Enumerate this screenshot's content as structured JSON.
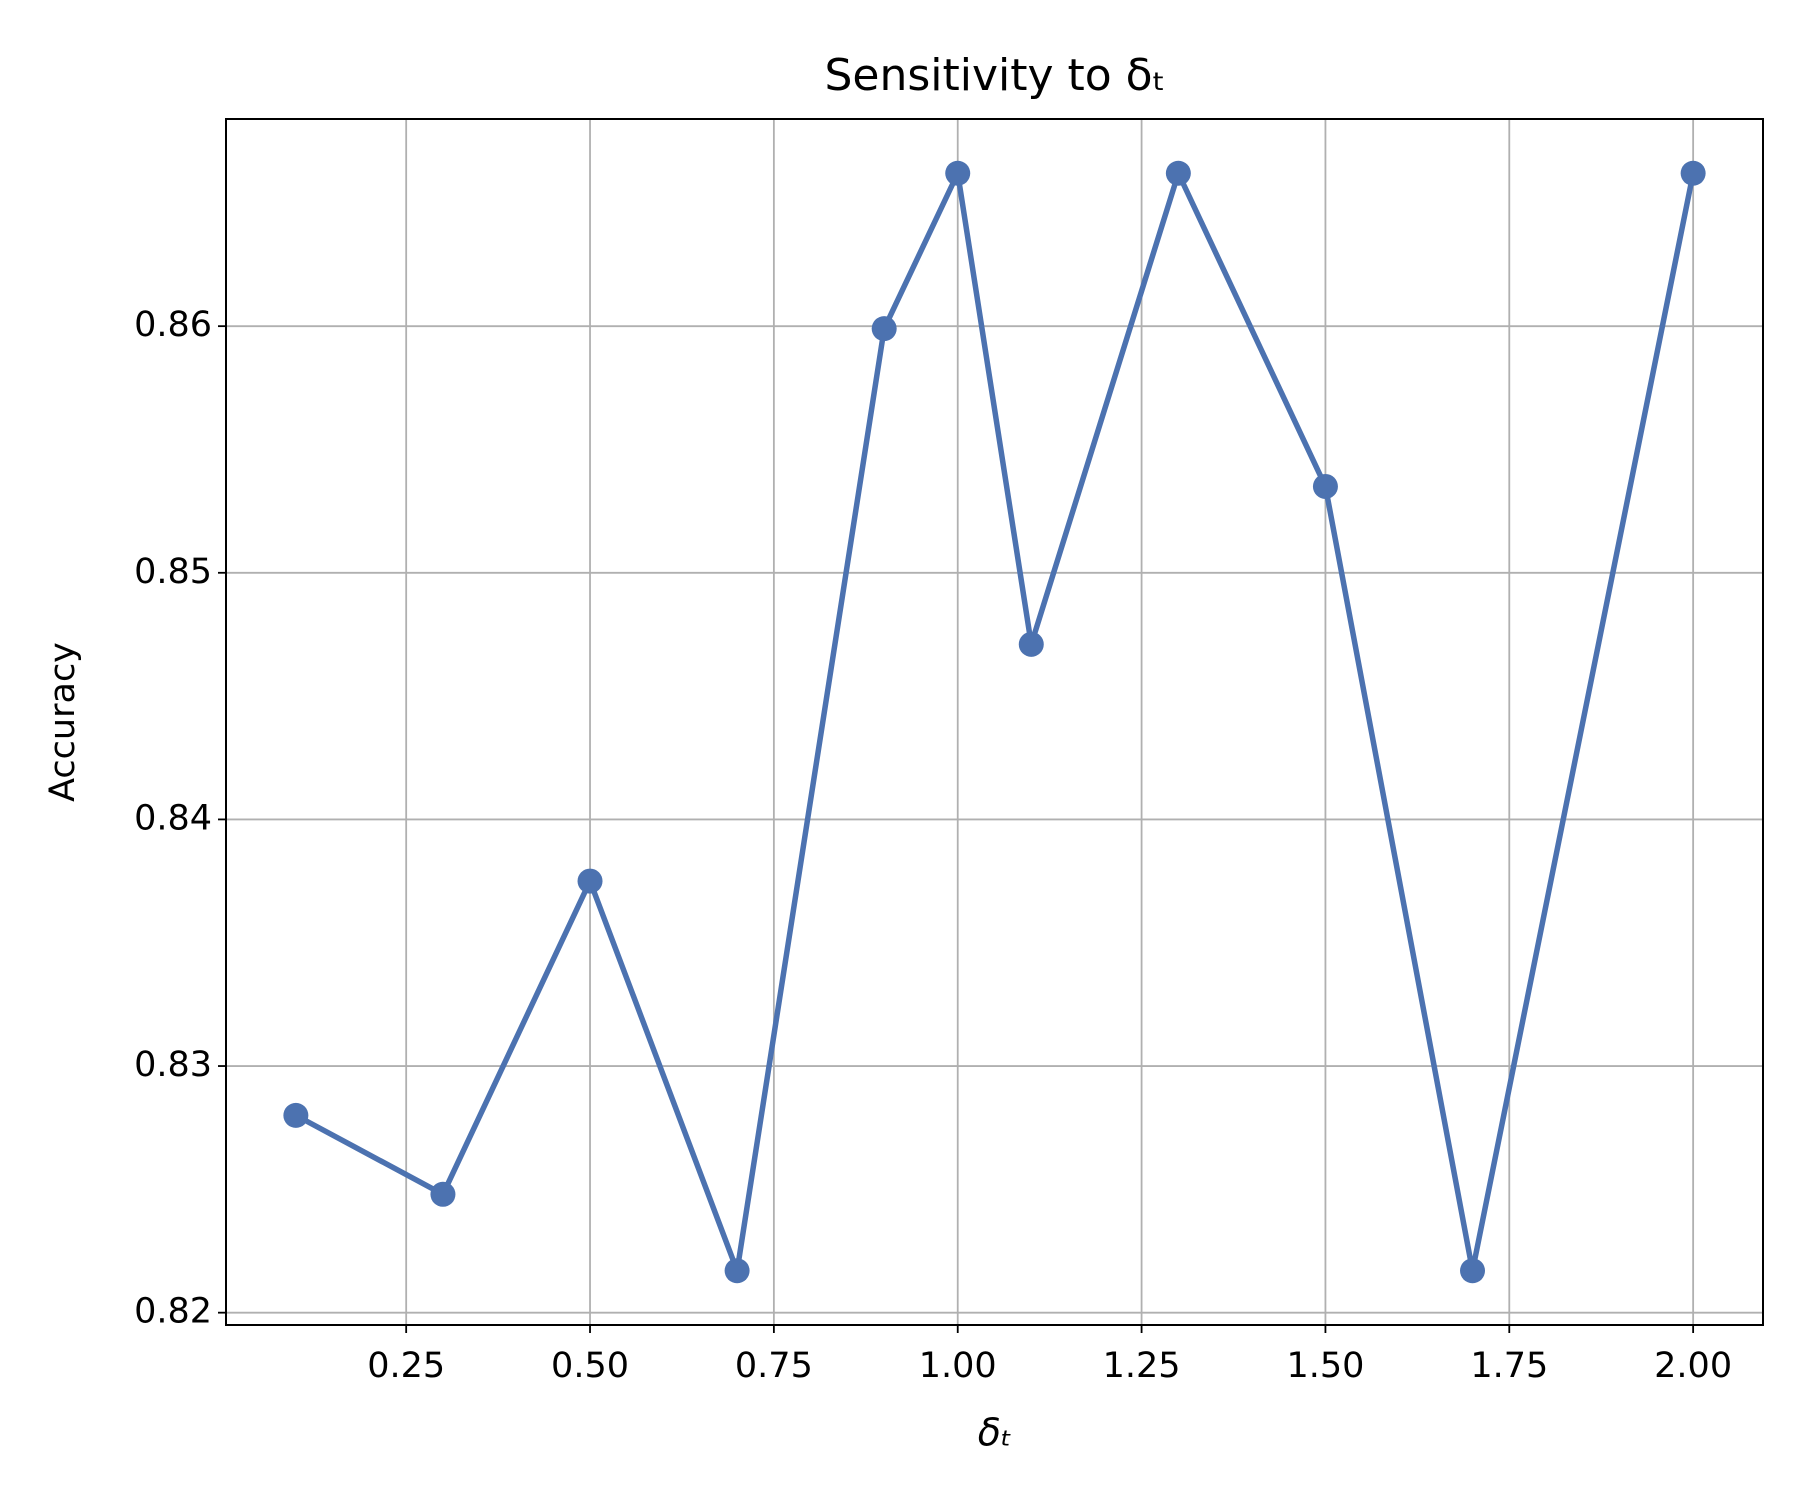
{
  "chart_data": {
    "type": "line",
    "title": "Sensitivity to δₜ",
    "xlabel": "δₜ",
    "ylabel": "Accuracy",
    "x": [
      0.1,
      0.3,
      0.5,
      0.7,
      0.9,
      1.0,
      1.1,
      1.3,
      1.5,
      1.7,
      2.0
    ],
    "series": [
      {
        "color": "#4c72b0",
        "values": [
          0.828,
          0.8248,
          0.8375,
          0.8217,
          0.8599,
          0.8662,
          0.8471,
          0.8662,
          0.8535,
          0.8217,
          0.8662
        ]
      }
    ],
    "xlim": [
      0.005,
      2.095
    ],
    "xticks": [
      {
        "value": 0.25,
        "label": "0.25"
      },
      {
        "value": 0.5,
        "label": "0.50"
      },
      {
        "value": 0.75,
        "label": "0.75"
      },
      {
        "value": 1.0,
        "label": "1.00"
      },
      {
        "value": 1.25,
        "label": "1.25"
      },
      {
        "value": 1.5,
        "label": "1.50"
      },
      {
        "value": 1.75,
        "label": "1.75"
      },
      {
        "value": 2.0,
        "label": "2.00"
      }
    ],
    "ylim": [
      0.8195,
      0.8684
    ],
    "yticks": [
      0.82,
      0.83,
      0.84,
      0.85,
      0.86
    ],
    "grid": true
  }
}
